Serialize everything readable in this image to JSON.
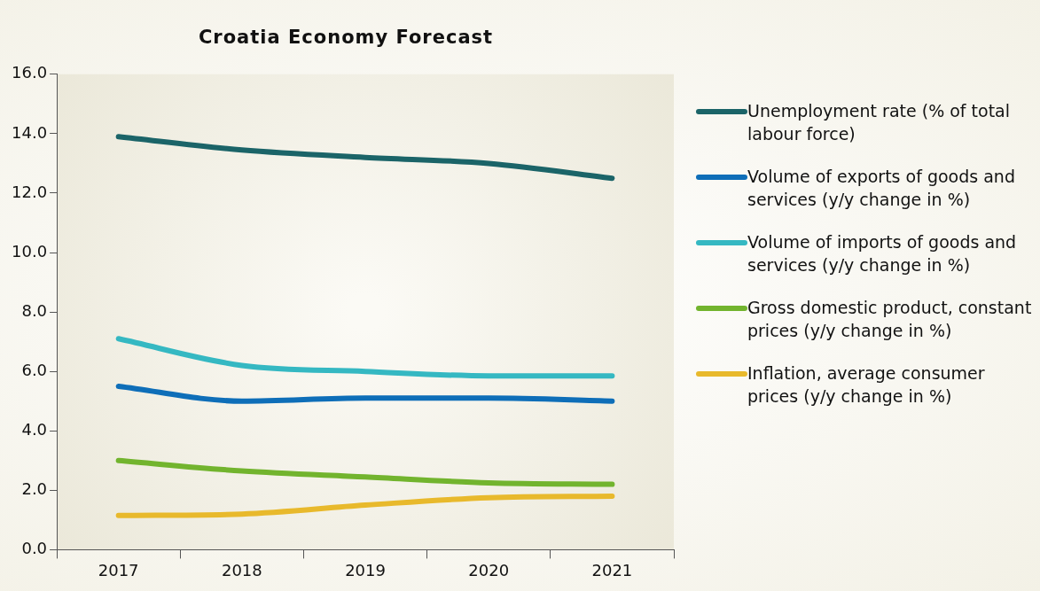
{
  "chart_data": {
    "type": "line",
    "title": "Croatia Economy Forecast",
    "categories": [
      "2017",
      "2018",
      "2019",
      "2020",
      "2021"
    ],
    "series": [
      {
        "name": "Unemployment rate (% of total labour force)",
        "color": "#1b6468",
        "values": [
          13.9,
          13.45,
          13.2,
          13.0,
          12.5
        ]
      },
      {
        "name": "Volume of exports of goods and services (y/y change in %)",
        "color": "#0e6eb8",
        "values": [
          5.5,
          5.0,
          5.1,
          5.1,
          5.0
        ]
      },
      {
        "name": "Volume of imports of goods and services (y/y change in %)",
        "color": "#35b8c2",
        "values": [
          7.1,
          6.2,
          6.0,
          5.85,
          5.85
        ]
      },
      {
        "name": "Gross domestic product, constant prices (y/y change in %)",
        "color": "#72b42e",
        "values": [
          3.0,
          2.65,
          2.45,
          2.25,
          2.2
        ]
      },
      {
        "name": "Inflation, average consumer prices (y/y change in %)",
        "color": "#e8b92c",
        "values": [
          1.15,
          1.2,
          1.5,
          1.75,
          1.8
        ]
      }
    ],
    "ylim": [
      0,
      16
    ],
    "yticks": [
      {
        "value": 0,
        "label": "0.0"
      },
      {
        "value": 2,
        "label": "2.0"
      },
      {
        "value": 4,
        "label": "4.0"
      },
      {
        "value": 6,
        "label": "6.0"
      },
      {
        "value": 8,
        "label": "8.0"
      },
      {
        "value": 10,
        "label": "10.0"
      },
      {
        "value": 12,
        "label": "12.0"
      },
      {
        "value": 14,
        "label": "14.0"
      },
      {
        "value": 16,
        "label": "16.0"
      }
    ],
    "grid": false,
    "legend": "right",
    "marker": "none",
    "line_style": "solid"
  }
}
